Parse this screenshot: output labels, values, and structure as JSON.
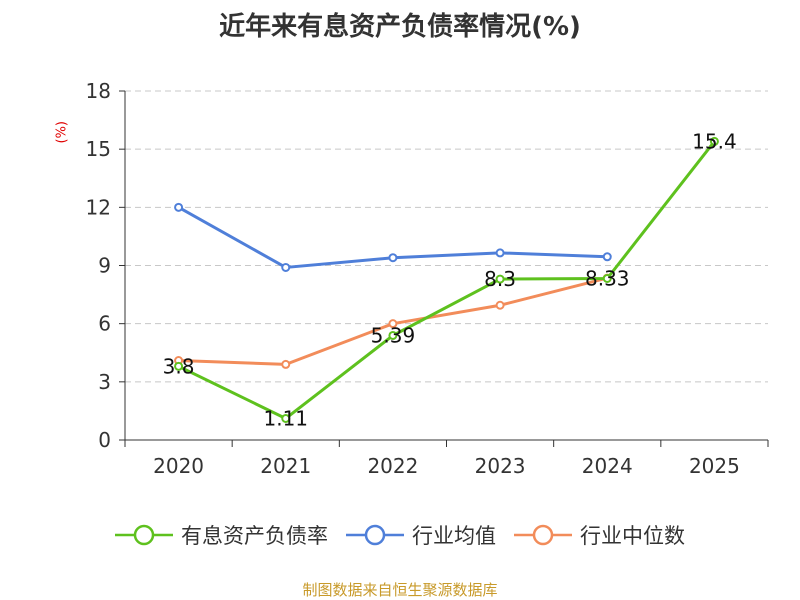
{
  "title": "近年来有息资产负债率情况(%)",
  "unit_label": "(%)",
  "source": "制图数据来自恒生聚源数据库",
  "chart_data": {
    "type": "line",
    "title": "近年来有息资产负债率情况(%)",
    "categories": [
      "2020",
      "2021",
      "2022",
      "2023",
      "2024",
      "2025"
    ],
    "ylim": [
      0,
      18
    ],
    "yticks": [
      0,
      3,
      6,
      9,
      12,
      15,
      18
    ],
    "grid": true,
    "legend_position": "bottom",
    "series": [
      {
        "name": "有息资产负债率",
        "color": "#5ec11e",
        "values": [
          3.8,
          1.11,
          5.39,
          8.3,
          8.33,
          15.4
        ],
        "labels": [
          "3.8",
          "1.11",
          "5.39",
          "8.3",
          "8.33",
          "15.4"
        ]
      },
      {
        "name": "行业均值",
        "color": "#4f7fd9",
        "values": [
          12.0,
          8.9,
          9.4,
          9.65,
          9.45,
          null
        ]
      },
      {
        "name": "行业中位数",
        "color": "#f28c5a",
        "values": [
          4.1,
          3.9,
          6.0,
          6.95,
          8.35,
          null
        ]
      }
    ]
  }
}
